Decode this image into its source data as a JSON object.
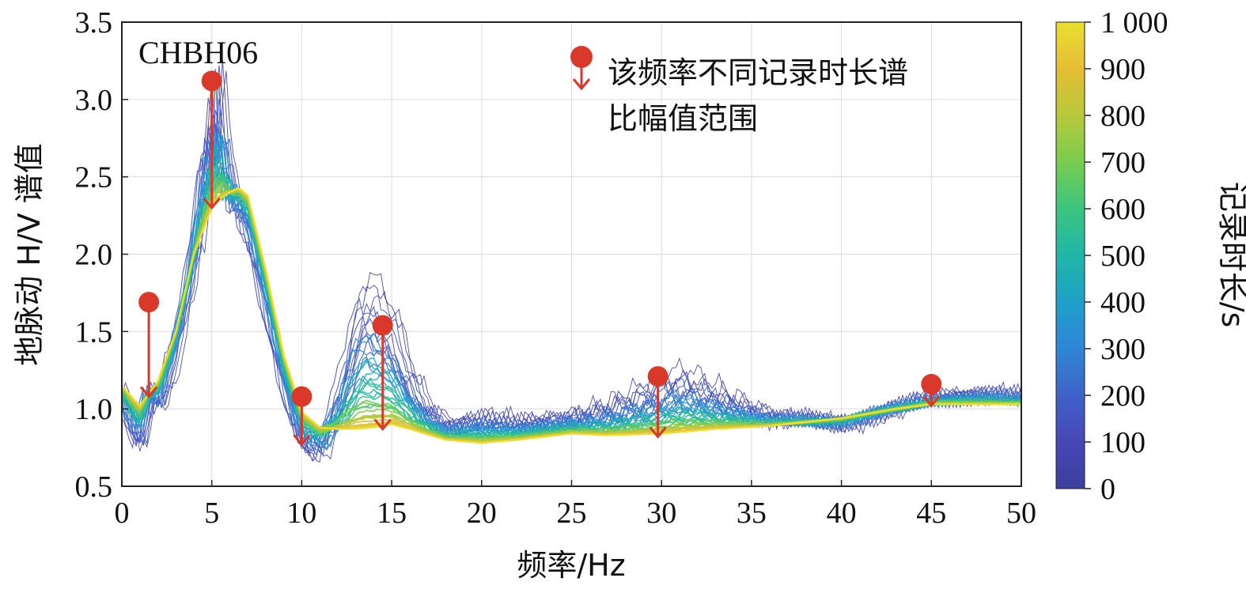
{
  "chart_data": {
    "type": "line",
    "station_label": "CHBH06",
    "xlabel": "频率/Hz",
    "ylabel": "地脉动 H/V 谱值",
    "xlim": [
      0,
      50
    ],
    "ylim": [
      0.5,
      3.5
    ],
    "x_ticks": [
      "0",
      "5",
      "10",
      "15",
      "20",
      "25",
      "30",
      "35",
      "40",
      "45",
      "50"
    ],
    "y_ticks": [
      "0.5",
      "1.0",
      "1.5",
      "2.0",
      "2.5",
      "3.0",
      "3.5"
    ],
    "grid": true,
    "colorbar": {
      "label": "记录时长/s",
      "ticks": [
        "0",
        "100",
        "200",
        "300",
        "400",
        "500",
        "600",
        "700",
        "800",
        "900",
        "1 000"
      ],
      "range": [
        0,
        1000
      ],
      "colors": [
        "#3b3f9c",
        "#4747b8",
        "#3f62c8",
        "#2f85d8",
        "#1fa0c8",
        "#1fb6a8",
        "#3cc480",
        "#79cc50",
        "#b8c83a",
        "#e6bd35",
        "#e8e030"
      ]
    },
    "legend": {
      "entry": "该频率不同记录时长谱比幅值范围",
      "line1": "该频率不同记录时长谱",
      "line2": "比幅值范围",
      "placement": "top-right"
    },
    "marker_color": "#d8392b",
    "range_markers": [
      {
        "x": 1.5,
        "top": 1.69,
        "bottom": 1.08
      },
      {
        "x": 5.0,
        "top": 3.12,
        "bottom": 2.3
      },
      {
        "x": 10.0,
        "top": 1.08,
        "bottom": 0.77
      },
      {
        "x": 14.5,
        "top": 1.54,
        "bottom": 0.87
      },
      {
        "x": 29.8,
        "top": 1.21,
        "bottom": 0.82
      },
      {
        "x": 45.0,
        "top": 1.16,
        "bottom": 1.02
      }
    ],
    "curve_description": "Family of H/V spectral ratio curves coloured by record duration 0–1000 s",
    "representative_curves": {
      "long_record_curve": {
        "x": [
          0,
          1,
          1.5,
          2,
          3,
          4,
          5,
          5.5,
          6,
          6.5,
          7,
          8,
          9,
          10,
          11,
          12,
          13,
          14,
          15,
          16,
          18,
          20,
          22,
          25,
          27,
          30,
          33,
          36,
          40,
          43,
          45,
          48,
          50
        ],
        "y": [
          1.15,
          1.02,
          1.1,
          1.18,
          1.5,
          2.0,
          2.3,
          2.36,
          2.4,
          2.43,
          2.38,
          1.9,
          1.35,
          0.98,
          0.88,
          0.87,
          0.87,
          0.88,
          0.9,
          0.87,
          0.8,
          0.78,
          0.8,
          0.84,
          0.83,
          0.84,
          0.87,
          0.89,
          0.94,
          1.0,
          1.03,
          1.03,
          1.03
        ]
      },
      "short_record_curve": {
        "x": [
          0,
          0.5,
          1,
          1.5,
          2,
          3,
          4,
          4.5,
          5,
          5.3,
          5.7,
          6,
          7,
          8,
          9,
          10,
          11,
          12,
          13,
          13.5,
          14,
          15,
          16,
          17,
          18,
          20,
          22,
          25,
          27,
          30,
          31,
          33,
          36,
          40,
          43,
          45,
          48,
          50
        ],
        "y": [
          1.1,
          0.8,
          0.72,
          1.15,
          0.95,
          1.4,
          2.0,
          2.6,
          2.9,
          3.1,
          2.7,
          2.4,
          2.1,
          1.6,
          1.1,
          0.72,
          0.7,
          1.05,
          1.6,
          1.75,
          1.7,
          1.55,
          1.2,
          1.0,
          0.9,
          0.95,
          0.92,
          0.95,
          1.0,
          1.15,
          1.2,
          1.1,
          0.95,
          0.9,
          1.0,
          1.08,
          1.1,
          1.08
        ]
      }
    }
  }
}
